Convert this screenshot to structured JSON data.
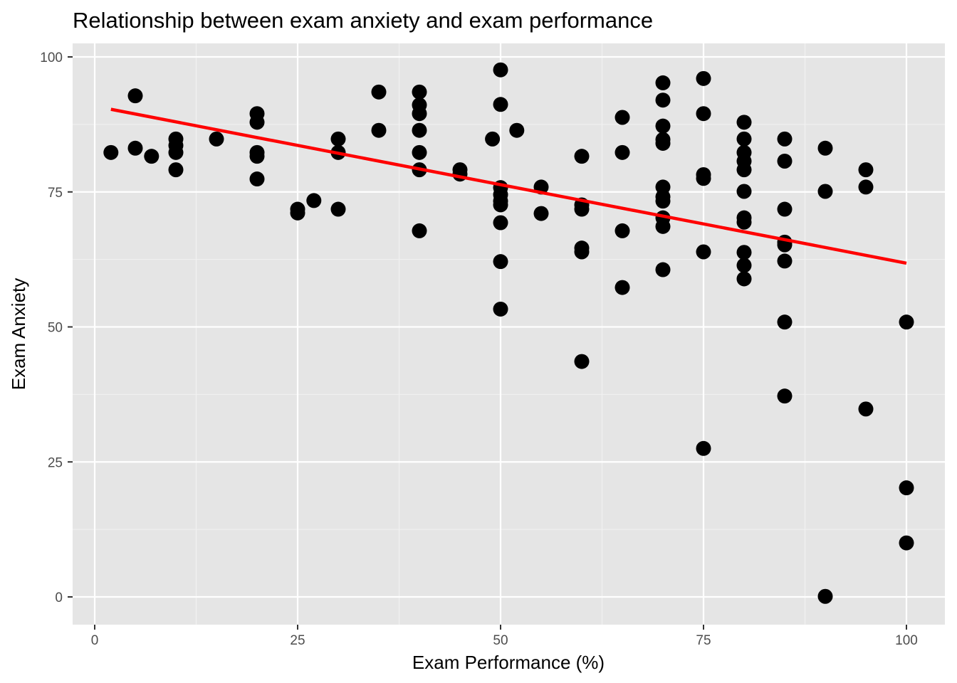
{
  "chart_data": {
    "type": "scatter",
    "title": "Relationship between exam anxiety and exam performance",
    "xlabel": "Exam Performance (%)",
    "ylabel": "Exam Anxiety",
    "xlim": [
      0,
      100
    ],
    "ylim": [
      0,
      100
    ],
    "x_ticks": [
      0,
      25,
      50,
      75,
      100
    ],
    "y_ticks": [
      0,
      25,
      50,
      75,
      100
    ],
    "x_tick_labels": [
      "0",
      "25",
      "50",
      "75",
      "100"
    ],
    "y_tick_labels": [
      "0",
      "25",
      "50",
      "75",
      "100"
    ],
    "grid": true,
    "point_color": "#000000",
    "trend_line": {
      "type": "linear",
      "color": "#ff0000",
      "points": [
        [
          2,
          90.3
        ],
        [
          100,
          61.8
        ]
      ]
    },
    "series": [
      {
        "points": [
          [
            2,
            82.3
          ],
          [
            5,
            92.8
          ],
          [
            5,
            83.1
          ],
          [
            7,
            81.6
          ],
          [
            10,
            84.8
          ],
          [
            10,
            83.6
          ],
          [
            10,
            82.3
          ],
          [
            10,
            79.1
          ],
          [
            15,
            84.8
          ],
          [
            20,
            89.5
          ],
          [
            20,
            87.9
          ],
          [
            20,
            82.3
          ],
          [
            20,
            81.6
          ],
          [
            20,
            77.4
          ],
          [
            25,
            71.8
          ],
          [
            25,
            71.1
          ],
          [
            27,
            73.4
          ],
          [
            30,
            84.8
          ],
          [
            30,
            82.3
          ],
          [
            30,
            71.8
          ],
          [
            35,
            93.5
          ],
          [
            35,
            86.4
          ],
          [
            40,
            93.5
          ],
          [
            40,
            91.1
          ],
          [
            40,
            89.5
          ],
          [
            40,
            86.4
          ],
          [
            40,
            82.3
          ],
          [
            40,
            79.1
          ],
          [
            40,
            67.8
          ],
          [
            45,
            79.1
          ],
          [
            45,
            78.3
          ],
          [
            49,
            84.8
          ],
          [
            50,
            97.6
          ],
          [
            50,
            91.2
          ],
          [
            50,
            75.8
          ],
          [
            50,
            74.5
          ],
          [
            50,
            73.3
          ],
          [
            50,
            72.6
          ],
          [
            50,
            69.3
          ],
          [
            50,
            62.1
          ],
          [
            50,
            53.3
          ],
          [
            52,
            86.4
          ],
          [
            55,
            75.9
          ],
          [
            55,
            71.0
          ],
          [
            60,
            81.6
          ],
          [
            60,
            72.6
          ],
          [
            60,
            71.8
          ],
          [
            60,
            64.6
          ],
          [
            60,
            63.9
          ],
          [
            60,
            43.6
          ],
          [
            65,
            88.8
          ],
          [
            65,
            82.3
          ],
          [
            65,
            67.8
          ],
          [
            65,
            57.3
          ],
          [
            70,
            95.2
          ],
          [
            70,
            92.0
          ],
          [
            70,
            87.2
          ],
          [
            70,
            84.7
          ],
          [
            70,
            84.0
          ],
          [
            70,
            75.9
          ],
          [
            70,
            74.1
          ],
          [
            70,
            73.3
          ],
          [
            70,
            70.2
          ],
          [
            70,
            68.6
          ],
          [
            70,
            60.6
          ],
          [
            75,
            96.0
          ],
          [
            75,
            89.5
          ],
          [
            75,
            78.2
          ],
          [
            75,
            77.5
          ],
          [
            75,
            63.9
          ],
          [
            75,
            27.5
          ],
          [
            80,
            87.9
          ],
          [
            80,
            84.8
          ],
          [
            80,
            82.3
          ],
          [
            80,
            80.7
          ],
          [
            80,
            79.1
          ],
          [
            80,
            75.1
          ],
          [
            80,
            70.2
          ],
          [
            80,
            69.4
          ],
          [
            80,
            63.8
          ],
          [
            80,
            61.4
          ],
          [
            80,
            58.9
          ],
          [
            85,
            84.8
          ],
          [
            85,
            80.7
          ],
          [
            85,
            71.8
          ],
          [
            85,
            65.7
          ],
          [
            85,
            65.2
          ],
          [
            85,
            62.2
          ],
          [
            85,
            50.9
          ],
          [
            85,
            37.2
          ],
          [
            90,
            83.1
          ],
          [
            90,
            75.1
          ],
          [
            90,
            0.1
          ],
          [
            95,
            79.1
          ],
          [
            95,
            75.9
          ],
          [
            95,
            34.8
          ],
          [
            100,
            50.9
          ],
          [
            100,
            20.2
          ],
          [
            100,
            10.0
          ]
        ]
      }
    ]
  }
}
